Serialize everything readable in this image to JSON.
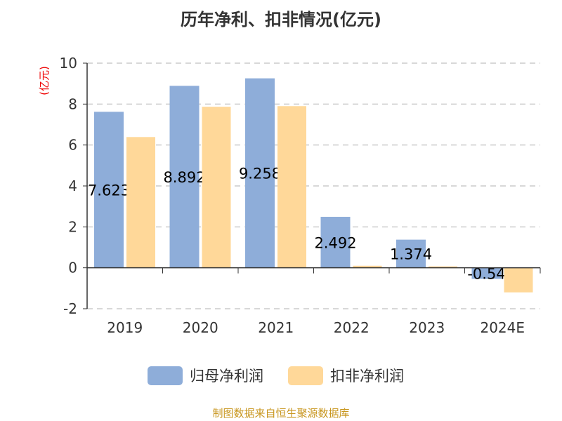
{
  "chart_data": {
    "type": "bar",
    "title": "历年净利、扣非情况(亿元)",
    "ylabel": "(亿元)",
    "categories": [
      "2019",
      "2020",
      "2021",
      "2022",
      "2023",
      "2024E"
    ],
    "series": [
      {
        "name": "归母净利润",
        "color": "#8eadd9",
        "values": [
          7.623,
          8.892,
          9.258,
          2.492,
          1.374,
          -0.54
        ],
        "labels": [
          "7.623",
          "8.892",
          "9.258",
          "2.492",
          "1.374",
          "-0.54"
        ]
      },
      {
        "name": "扣非净利润",
        "color": "#ffd899",
        "values": [
          6.39,
          7.87,
          7.9,
          0.1,
          0.07,
          -1.2
        ]
      }
    ],
    "ylim": [
      -2,
      10
    ],
    "yticks": [
      "-2",
      "0",
      "2",
      "4",
      "6",
      "8",
      "10"
    ],
    "grid": true,
    "legend": "bottom"
  },
  "source": "制图数据来自恒生聚源数据库"
}
